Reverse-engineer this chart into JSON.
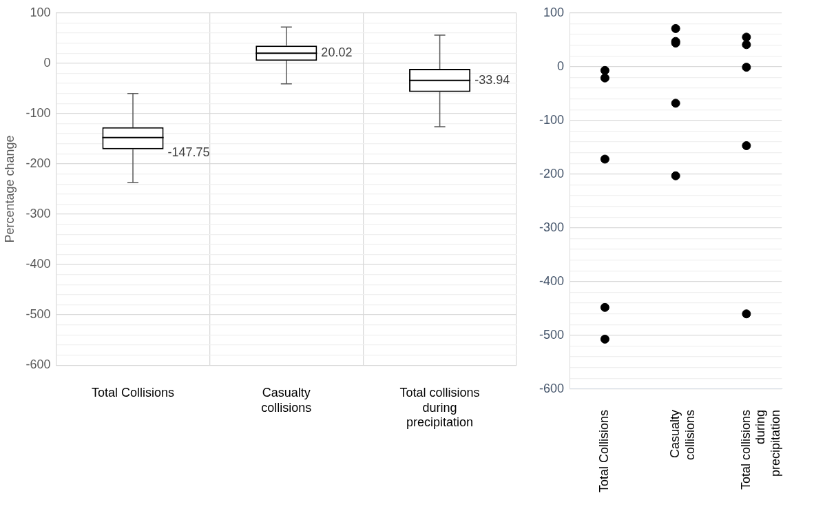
{
  "chart_data": [
    {
      "type": "box",
      "ylabel": "Percentage change",
      "categories": [
        "Total Collisions",
        "Casualty collisions",
        "Total collisions during precipitation"
      ],
      "series": [
        {
          "color": "#000000",
          "boxes": [
            {
              "low": -237,
              "q1": -171,
              "median": -147.75,
              "q3": -127,
              "high": -60
            },
            {
              "low": -41,
              "q1": 5,
              "median": 20.02,
              "q3": 35,
              "high": 72
            },
            {
              "low": -126,
              "q1": -57,
              "median": -33.94,
              "q3": -11,
              "high": 56
            }
          ],
          "value_labels": [
            "-147.75",
            "20.02",
            "-33.94"
          ]
        }
      ],
      "data_labels": true,
      "ylim": [
        -600,
        100
      ],
      "yticks": [
        -600,
        {
          "value": -580,
          "label": null
        },
        {
          "value": -560,
          "label": null
        },
        {
          "value": -540,
          "label": null
        },
        {
          "value": -520,
          "label": null
        },
        -500,
        {
          "value": -480,
          "label": null
        },
        {
          "value": -460,
          "label": null
        },
        {
          "value": -440,
          "label": null
        },
        {
          "value": -420,
          "label": null
        },
        -400,
        {
          "value": -380,
          "label": null
        },
        {
          "value": -360,
          "label": null
        },
        {
          "value": -340,
          "label": null
        },
        {
          "value": -320,
          "label": null
        },
        -300,
        {
          "value": -280,
          "label": null
        },
        {
          "value": -260,
          "label": null
        },
        {
          "value": -240,
          "label": null
        },
        {
          "value": -220,
          "label": null
        },
        -200,
        {
          "value": -180,
          "label": null
        },
        {
          "value": -160,
          "label": null
        },
        {
          "value": -140,
          "label": null
        },
        {
          "value": -120,
          "label": null
        },
        -100,
        {
          "value": -80,
          "label": null
        },
        {
          "value": -60,
          "label": null
        },
        {
          "value": -40,
          "label": null
        },
        {
          "value": -20,
          "label": null
        },
        0,
        {
          "value": 20,
          "label": null
        },
        {
          "value": 40,
          "label": null
        },
        {
          "value": 60,
          "label": null
        },
        {
          "value": 80,
          "label": null
        },
        100
      ],
      "grid": true,
      "legend": false
    },
    {
      "type": "scatter",
      "categories": [
        "Total Collisions",
        "Casualty collisions",
        "Total collisions during precipitation"
      ],
      "series": [
        {
          "color": "#000000",
          "x": [
            "Total Collisions",
            "Total Collisions",
            "Total Collisions",
            "Total Collisions",
            "Total Collisions",
            "Casualty collisions",
            "Casualty collisions",
            "Casualty collisions",
            "Casualty collisions",
            "Casualty collisions",
            "Total collisions during precipitation",
            "Total collisions during precipitation",
            "Total collisions during precipitation",
            "Total collisions during precipitation",
            "Total collisions during precipitation"
          ],
          "values": [
            -7,
            -21,
            -172,
            -448,
            -507,
            71,
            47,
            44,
            -68,
            -203,
            55,
            41,
            -1,
            -147,
            -460
          ]
        }
      ],
      "marker": "circle",
      "ylim": [
        -600,
        100
      ],
      "yticks": [
        -600,
        {
          "value": -580,
          "label": null
        },
        {
          "value": -560,
          "label": null
        },
        {
          "value": -540,
          "label": null
        },
        {
          "value": -520,
          "label": null
        },
        -500,
        {
          "value": -480,
          "label": null
        },
        {
          "value": -460,
          "label": null
        },
        {
          "value": -440,
          "label": null
        },
        {
          "value": -420,
          "label": null
        },
        -400,
        {
          "value": -380,
          "label": null
        },
        {
          "value": -360,
          "label": null
        },
        {
          "value": -340,
          "label": null
        },
        {
          "value": -320,
          "label": null
        },
        -300,
        {
          "value": -280,
          "label": null
        },
        {
          "value": -260,
          "label": null
        },
        {
          "value": -240,
          "label": null
        },
        {
          "value": -220,
          "label": null
        },
        -200,
        {
          "value": -180,
          "label": null
        },
        {
          "value": -160,
          "label": null
        },
        {
          "value": -140,
          "label": null
        },
        {
          "value": -120,
          "label": null
        },
        -100,
        {
          "value": -80,
          "label": null
        },
        {
          "value": -60,
          "label": null
        },
        {
          "value": -40,
          "label": null
        },
        {
          "value": -20,
          "label": null
        },
        0,
        {
          "value": 20,
          "label": null
        },
        {
          "value": 40,
          "label": null
        },
        {
          "value": 60,
          "label": null
        },
        {
          "value": 80,
          "label": null
        },
        100
      ],
      "grid": "y",
      "legend": false
    }
  ]
}
